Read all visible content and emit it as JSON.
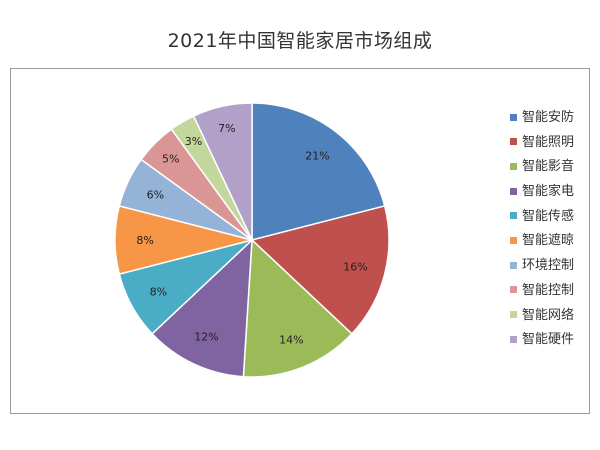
{
  "chart_data": {
    "type": "pie",
    "title": "2021年中国智能家居市场组成",
    "categories": [
      "智能安防",
      "智能照明",
      "智能影音",
      "智能家电",
      "智能传感",
      "智能遮晾",
      "环境控制",
      "智能控制",
      "智能网络",
      "智能硬件"
    ],
    "values": [
      21,
      16,
      14,
      12,
      8,
      8,
      6,
      5,
      3,
      7
    ],
    "labels": [
      "21%",
      "16%",
      "14%",
      "12%",
      "8%",
      "8%",
      "6%",
      "5%",
      "3%",
      "7%"
    ],
    "colors": [
      "#4F81BD",
      "#C0504D",
      "#9BBB59",
      "#8064A2",
      "#4BACC6",
      "#F79646",
      "#95B3D7",
      "#DA9694",
      "#C3D69B",
      "#B1A0C7"
    ],
    "legend_position": "right"
  }
}
